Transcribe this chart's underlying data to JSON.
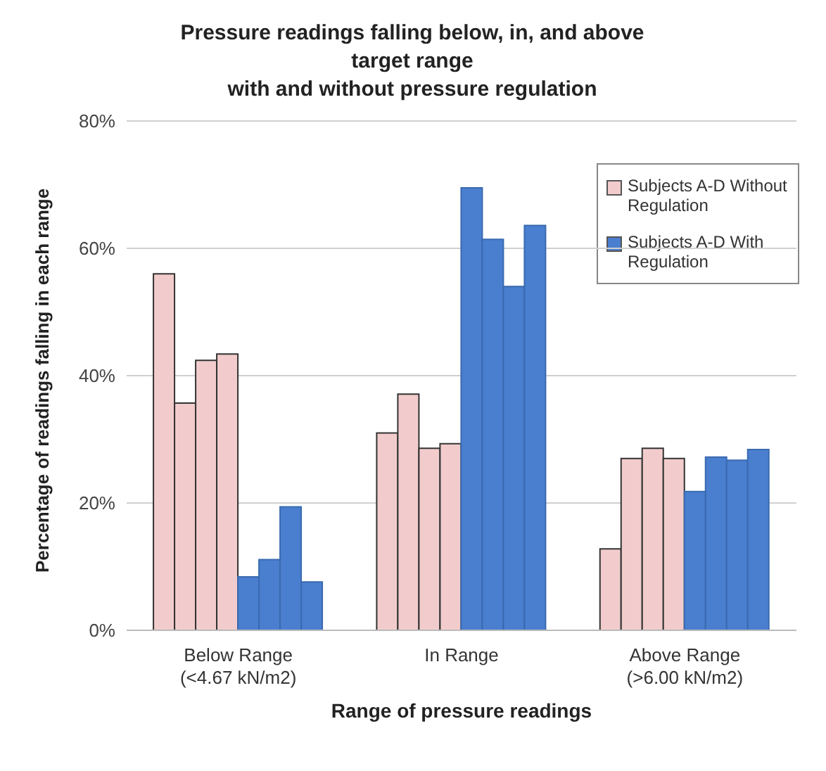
{
  "chart_data": {
    "type": "bar",
    "title": "Pressure readings falling below, in, and above\ntarget range\nwith and without pressure regulation",
    "xlabel": "Range of pressure readings",
    "ylabel": "Percentage of readings falling in each range",
    "categories": [
      "Below Range\n(<4.67 kN/m2)",
      "In Range",
      "Above Range\n(>6.00 kN/m2)"
    ],
    "series": [
      {
        "name": "Subjects A-D Without Regulation",
        "color": "#f2cccc",
        "values": [
          56,
          31,
          12.8
        ]
      },
      {
        "color": "#f2cccc",
        "values": [
          35.7,
          37.1,
          27
        ]
      },
      {
        "color": "#f2cccc",
        "values": [
          42.4,
          28.6,
          28.6
        ]
      },
      {
        "color": "#f2cccc",
        "values": [
          43.4,
          29.3,
          27
        ]
      },
      {
        "name": "Subjects A-D With Regulation",
        "color": "#4a7fcf",
        "values": [
          8.4,
          69.5,
          21.8
        ]
      },
      {
        "color": "#4a7fcf",
        "values": [
          11.1,
          61.4,
          27.2
        ]
      },
      {
        "color": "#4a7fcf",
        "values": [
          19.4,
          54,
          26.7
        ]
      },
      {
        "color": "#4a7fcf",
        "values": [
          7.6,
          63.6,
          28.4
        ]
      }
    ],
    "ylim": [
      0,
      80
    ],
    "yticks": [
      {
        "value": 0,
        "label": "0%"
      },
      {
        "value": 20,
        "label": "20%"
      },
      {
        "value": 40,
        "label": "40%"
      },
      {
        "value": 60,
        "label": "60%"
      },
      {
        "value": 80,
        "label": "80%"
      }
    ],
    "grid": "y",
    "legend": "top right"
  }
}
